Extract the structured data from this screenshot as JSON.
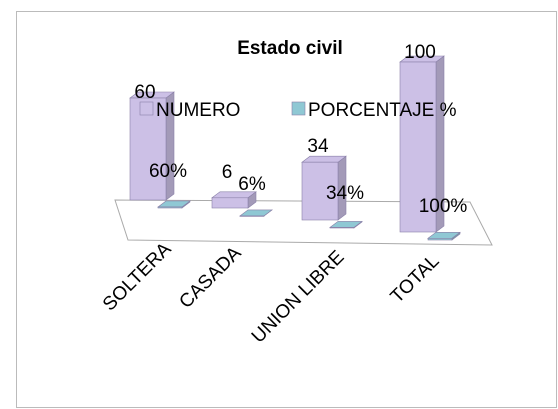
{
  "chart_data": {
    "type": "bar3d",
    "title": "Estado civil",
    "categories": [
      "SOLTERA",
      "CASADA",
      "UNION LIBRE",
      "TOTAL"
    ],
    "series": [
      {
        "name": "NUMERO",
        "color": "#ccc0e6",
        "values": [
          60,
          6,
          34,
          100
        ]
      },
      {
        "name": "PORCENTAJE %",
        "color": "#8fc8d4",
        "values": [
          0.6,
          0.06,
          0.34,
          1
        ],
        "value_labels": [
          "60%",
          "6%",
          "34%",
          "100%"
        ]
      }
    ],
    "ylim": [
      0,
      100
    ]
  }
}
